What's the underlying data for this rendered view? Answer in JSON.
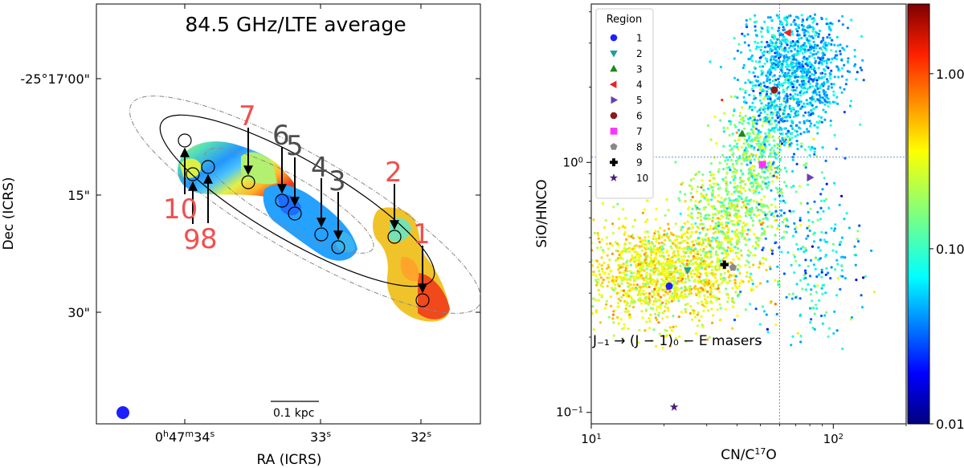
{
  "colors": {
    "red_label": "#f05050",
    "gray_label": "#4d4d4d",
    "beam": "#1e1eff",
    "guide": "#6a8fd6"
  },
  "left_panel": {
    "title": "84.5 GHz/LTE average",
    "xlabel": "RA (ICRS)",
    "ylabel": "Dec (ICRS)",
    "yticks": [
      "-25°17'00\"",
      "15\"",
      "30\""
    ],
    "xticks": [
      {
        "h": "0",
        "m": "47",
        "s": "34",
        "hs": "h",
        "ms": "m",
        "ss": "s"
      },
      {
        "s": "33",
        "ss": "s"
      },
      {
        "s": "32",
        "ss": "s"
      }
    ],
    "scalebar_label": "0.1 kpc",
    "region_labels": [
      {
        "text": "1",
        "color": "red"
      },
      {
        "text": "2",
        "color": "red"
      },
      {
        "text": "3",
        "color": "gray"
      },
      {
        "text": "4",
        "color": "gray"
      },
      {
        "text": "5",
        "color": "gray"
      },
      {
        "text": "6",
        "color": "gray"
      },
      {
        "text": "7",
        "color": "red"
      },
      {
        "text": "8",
        "color": "red"
      },
      {
        "text": "9",
        "color": "red"
      },
      {
        "text": "10",
        "color": "red"
      }
    ]
  },
  "chart_data": {
    "type": "scatter",
    "xscale": "log",
    "yscale": "log",
    "xlabel_base": "CN/C",
    "xlabel_sup": "17",
    "xlabel_tail": "O",
    "ylabel": "SiO/HNCO",
    "xlim": [
      10,
      200
    ],
    "ylim": [
      0.09,
      4.3
    ],
    "x_ticks": [
      {
        "value": 10,
        "base": "10",
        "exp": "1"
      },
      {
        "value": 100,
        "base": "10",
        "exp": "2"
      }
    ],
    "y_ticks": [
      {
        "value": 0.1,
        "base": "10",
        "exp": "−1"
      },
      {
        "value": 1,
        "base": "10",
        "exp": "0"
      }
    ],
    "guide_x": 60,
    "guide_y": 1.05,
    "annotation": "J₋₁ → (J − 1)₀ − E masers",
    "colorbar": {
      "min": 0.01,
      "max": 2.5,
      "ticks": [
        "1.00",
        "0.10",
        "0.01"
      ],
      "tick_values": [
        1.0,
        0.1,
        0.01
      ]
    },
    "legend_title": "Region",
    "regions": [
      {
        "label": "1",
        "x": 21,
        "y": 0.32,
        "marker": "circle",
        "color": "#1f1fff"
      },
      {
        "label": "2",
        "x": 25,
        "y": 0.37,
        "marker": "tri-down",
        "color": "#1a9f9f"
      },
      {
        "label": "3",
        "x": 42,
        "y": 1.3,
        "marker": "tri-up",
        "color": "#1a8a1a"
      },
      {
        "label": "4",
        "x": 65,
        "y": 3.3,
        "marker": "tri-left",
        "color": "#ee2222"
      },
      {
        "label": "5",
        "x": 80,
        "y": 0.87,
        "marker": "tri-right",
        "color": "#6a3fb0"
      },
      {
        "label": "6",
        "x": 57,
        "y": 1.95,
        "marker": "circle",
        "color": "#8b1a1a"
      },
      {
        "label": "7",
        "x": 51,
        "y": 0.98,
        "marker": "square",
        "color": "#ff33ff"
      },
      {
        "label": "8",
        "x": 38.5,
        "y": 0.38,
        "marker": "pentagon",
        "color": "#888888"
      },
      {
        "label": "9",
        "x": 35.5,
        "y": 0.39,
        "marker": "plus",
        "color": "#000000"
      },
      {
        "label": "10",
        "x": 22,
        "y": 0.105,
        "marker": "star",
        "color": "#4b1c7a"
      }
    ]
  }
}
